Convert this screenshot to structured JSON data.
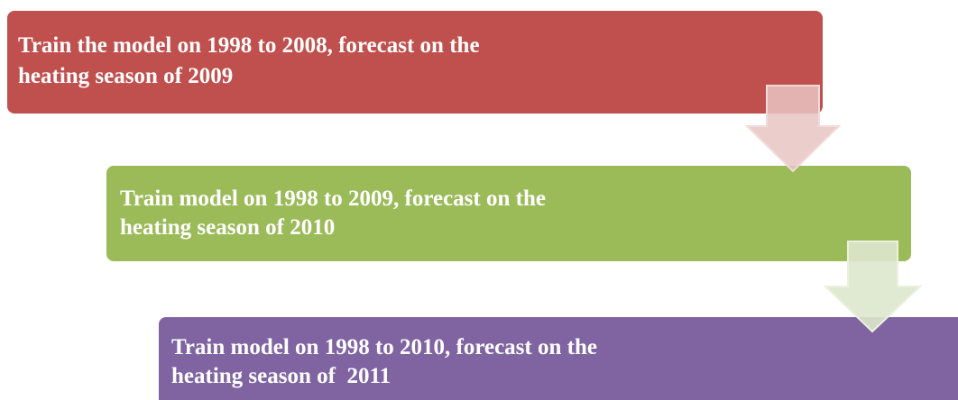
{
  "steps": [
    {
      "lines": [
        "Train the model on 1998 to 2008, forecast on the",
        "heating season of 2009"
      ]
    },
    {
      "lines": [
        "Train model on 1998 to 2009, forecast on the",
        "heating season of 2010"
      ]
    },
    {
      "lines": [
        "Train model on 1998 to 2010, forecast on the",
        "heating season of  2011"
      ]
    }
  ]
}
